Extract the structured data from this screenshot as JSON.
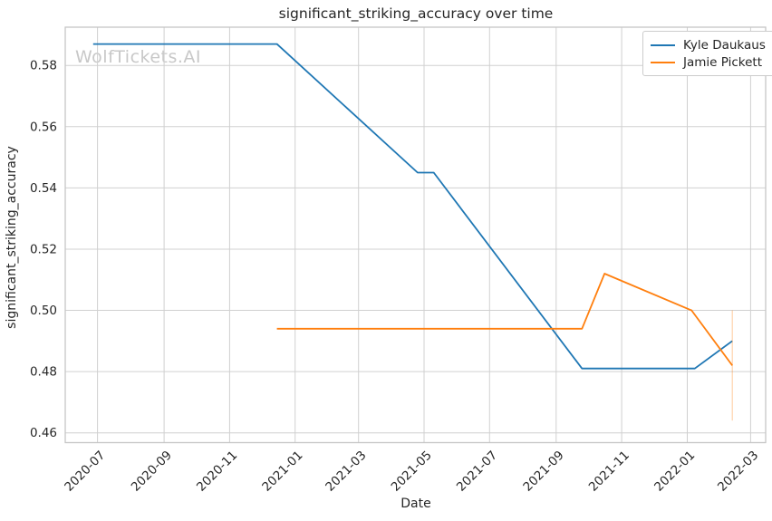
{
  "watermark": "WolfTickets.AI",
  "chart_data": {
    "type": "line",
    "title": "significant_striking_accuracy over time",
    "xlabel": "Date",
    "ylabel": "significant_striking_accuracy",
    "grid": true,
    "legend_position": "upper right",
    "x_domain": [
      "2020-06-01",
      "2022-03-15"
    ],
    "ylim": [
      0.4568,
      0.5925
    ],
    "x_ticks": [
      {
        "label": "2020-07",
        "date": "2020-07-01"
      },
      {
        "label": "2020-09",
        "date": "2020-09-01"
      },
      {
        "label": "2020-11",
        "date": "2020-11-01"
      },
      {
        "label": "2021-01",
        "date": "2021-01-01"
      },
      {
        "label": "2021-03",
        "date": "2021-03-01"
      },
      {
        "label": "2021-05",
        "date": "2021-05-01"
      },
      {
        "label": "2021-07",
        "date": "2021-07-01"
      },
      {
        "label": "2021-09",
        "date": "2021-09-01"
      },
      {
        "label": "2021-11",
        "date": "2021-11-01"
      },
      {
        "label": "2022-01",
        "date": "2022-01-01"
      },
      {
        "label": "2022-03",
        "date": "2022-03-01"
      }
    ],
    "y_ticks": [
      {
        "label": "0.46",
        "value": 0.46
      },
      {
        "label": "0.48",
        "value": 0.48
      },
      {
        "label": "0.50",
        "value": 0.5
      },
      {
        "label": "0.52",
        "value": 0.52
      },
      {
        "label": "0.54",
        "value": 0.54
      },
      {
        "label": "0.56",
        "value": 0.56
      },
      {
        "label": "0.58",
        "value": 0.58
      }
    ],
    "series": [
      {
        "name": "Kyle Daukaus",
        "color": "#1f77b4",
        "points": [
          [
            "2020-06-27",
            0.587
          ],
          [
            "2020-12-15",
            0.587
          ],
          [
            "2021-04-25",
            0.545
          ],
          [
            "2021-05-10",
            0.545
          ],
          [
            "2021-09-25",
            0.481
          ],
          [
            "2022-01-08",
            0.481
          ],
          [
            "2022-02-12",
            0.49
          ]
        ]
      },
      {
        "name": "Jamie Pickett",
        "color": "#ff7f0e",
        "points": [
          [
            "2020-12-15",
            0.494
          ],
          [
            "2021-09-25",
            0.494
          ],
          [
            "2021-10-16",
            0.512
          ],
          [
            "2022-01-05",
            0.5
          ],
          [
            "2022-02-12",
            0.482
          ]
        ]
      }
    ],
    "error_bar": {
      "series": "Jamie Pickett",
      "x": "2022-02-12",
      "y": 0.482,
      "y_min": 0.464,
      "y_max": 0.5,
      "color": "rgba(255,127,14,0.35)"
    }
  }
}
